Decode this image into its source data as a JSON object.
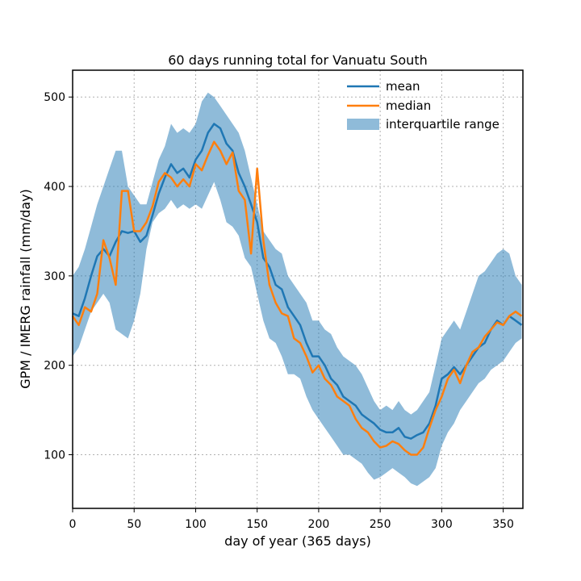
{
  "chart_data": {
    "type": "line",
    "title": "60 days running total for Vanuatu South",
    "xlabel": "day of year (365 days)",
    "ylabel": "GPM / IMERG rainfall (mm/day)",
    "xlim": [
      0,
      366
    ],
    "ylim": [
      40,
      530
    ],
    "xticks": [
      0,
      50,
      100,
      150,
      200,
      250,
      300,
      350
    ],
    "yticks": [
      100,
      200,
      300,
      400,
      500
    ],
    "grid": true,
    "legend_position": "top-right",
    "colors": {
      "mean": "#1f77b4",
      "median": "#ff7f0e",
      "iqr": "#1f77b4"
    },
    "x": [
      0,
      5,
      10,
      15,
      20,
      25,
      30,
      35,
      40,
      45,
      50,
      55,
      60,
      65,
      70,
      75,
      80,
      85,
      90,
      95,
      100,
      105,
      110,
      115,
      120,
      125,
      130,
      135,
      140,
      145,
      150,
      155,
      160,
      165,
      170,
      175,
      180,
      185,
      190,
      195,
      200,
      205,
      210,
      215,
      220,
      225,
      230,
      235,
      240,
      245,
      250,
      255,
      260,
      265,
      270,
      275,
      280,
      285,
      290,
      295,
      300,
      305,
      310,
      315,
      320,
      325,
      330,
      335,
      340,
      345,
      350,
      355,
      360,
      365
    ],
    "series": [
      {
        "name": "mean",
        "values": [
          258,
          255,
          275,
          300,
          322,
          330,
          322,
          338,
          350,
          348,
          350,
          338,
          345,
          368,
          392,
          410,
          425,
          415,
          420,
          410,
          430,
          440,
          460,
          470,
          465,
          448,
          440,
          415,
          400,
          380,
          360,
          320,
          310,
          290,
          285,
          265,
          255,
          245,
          225,
          210,
          210,
          200,
          185,
          178,
          165,
          160,
          155,
          145,
          140,
          135,
          128,
          125,
          125,
          130,
          120,
          118,
          122,
          125,
          135,
          155,
          185,
          190,
          198,
          190,
          200,
          210,
          220,
          225,
          240,
          250,
          245,
          255,
          250,
          245
        ]
      },
      {
        "name": "median",
        "values": [
          255,
          245,
          265,
          260,
          280,
          340,
          320,
          290,
          395,
          395,
          350,
          350,
          360,
          378,
          405,
          415,
          410,
          400,
          408,
          400,
          425,
          418,
          435,
          450,
          440,
          425,
          438,
          395,
          385,
          325,
          420,
          340,
          290,
          270,
          258,
          255,
          230,
          225,
          210,
          192,
          200,
          185,
          178,
          165,
          160,
          155,
          140,
          130,
          125,
          115,
          108,
          110,
          115,
          112,
          105,
          100,
          100,
          108,
          130,
          150,
          165,
          185,
          195,
          180,
          200,
          215,
          220,
          232,
          240,
          248,
          245,
          255,
          260,
          255
        ]
      },
      {
        "name": "interquartile range",
        "low": [
          210,
          220,
          240,
          260,
          270,
          280,
          270,
          240,
          235,
          230,
          250,
          280,
          330,
          360,
          370,
          375,
          385,
          375,
          380,
          375,
          380,
          375,
          390,
          405,
          385,
          360,
          355,
          345,
          320,
          310,
          280,
          250,
          230,
          225,
          210,
          190,
          190,
          185,
          165,
          150,
          140,
          130,
          120,
          110,
          100,
          100,
          95,
          90,
          80,
          72,
          75,
          80,
          85,
          80,
          75,
          68,
          65,
          70,
          75,
          85,
          110,
          125,
          135,
          150,
          160,
          170,
          180,
          185,
          195,
          200,
          205,
          215,
          225,
          230
        ],
        "high": [
          300,
          310,
          330,
          355,
          380,
          400,
          420,
          440,
          440,
          400,
          390,
          380,
          380,
          405,
          430,
          445,
          470,
          460,
          465,
          460,
          470,
          495,
          505,
          500,
          490,
          480,
          470,
          460,
          440,
          410,
          380,
          350,
          340,
          330,
          325,
          300,
          290,
          280,
          270,
          250,
          250,
          240,
          235,
          220,
          210,
          205,
          200,
          190,
          175,
          160,
          150,
          155,
          150,
          160,
          150,
          145,
          150,
          160,
          170,
          200,
          230,
          240,
          250,
          240,
          260,
          280,
          300,
          305,
          315,
          325,
          330,
          325,
          300,
          290
        ]
      }
    ]
  }
}
